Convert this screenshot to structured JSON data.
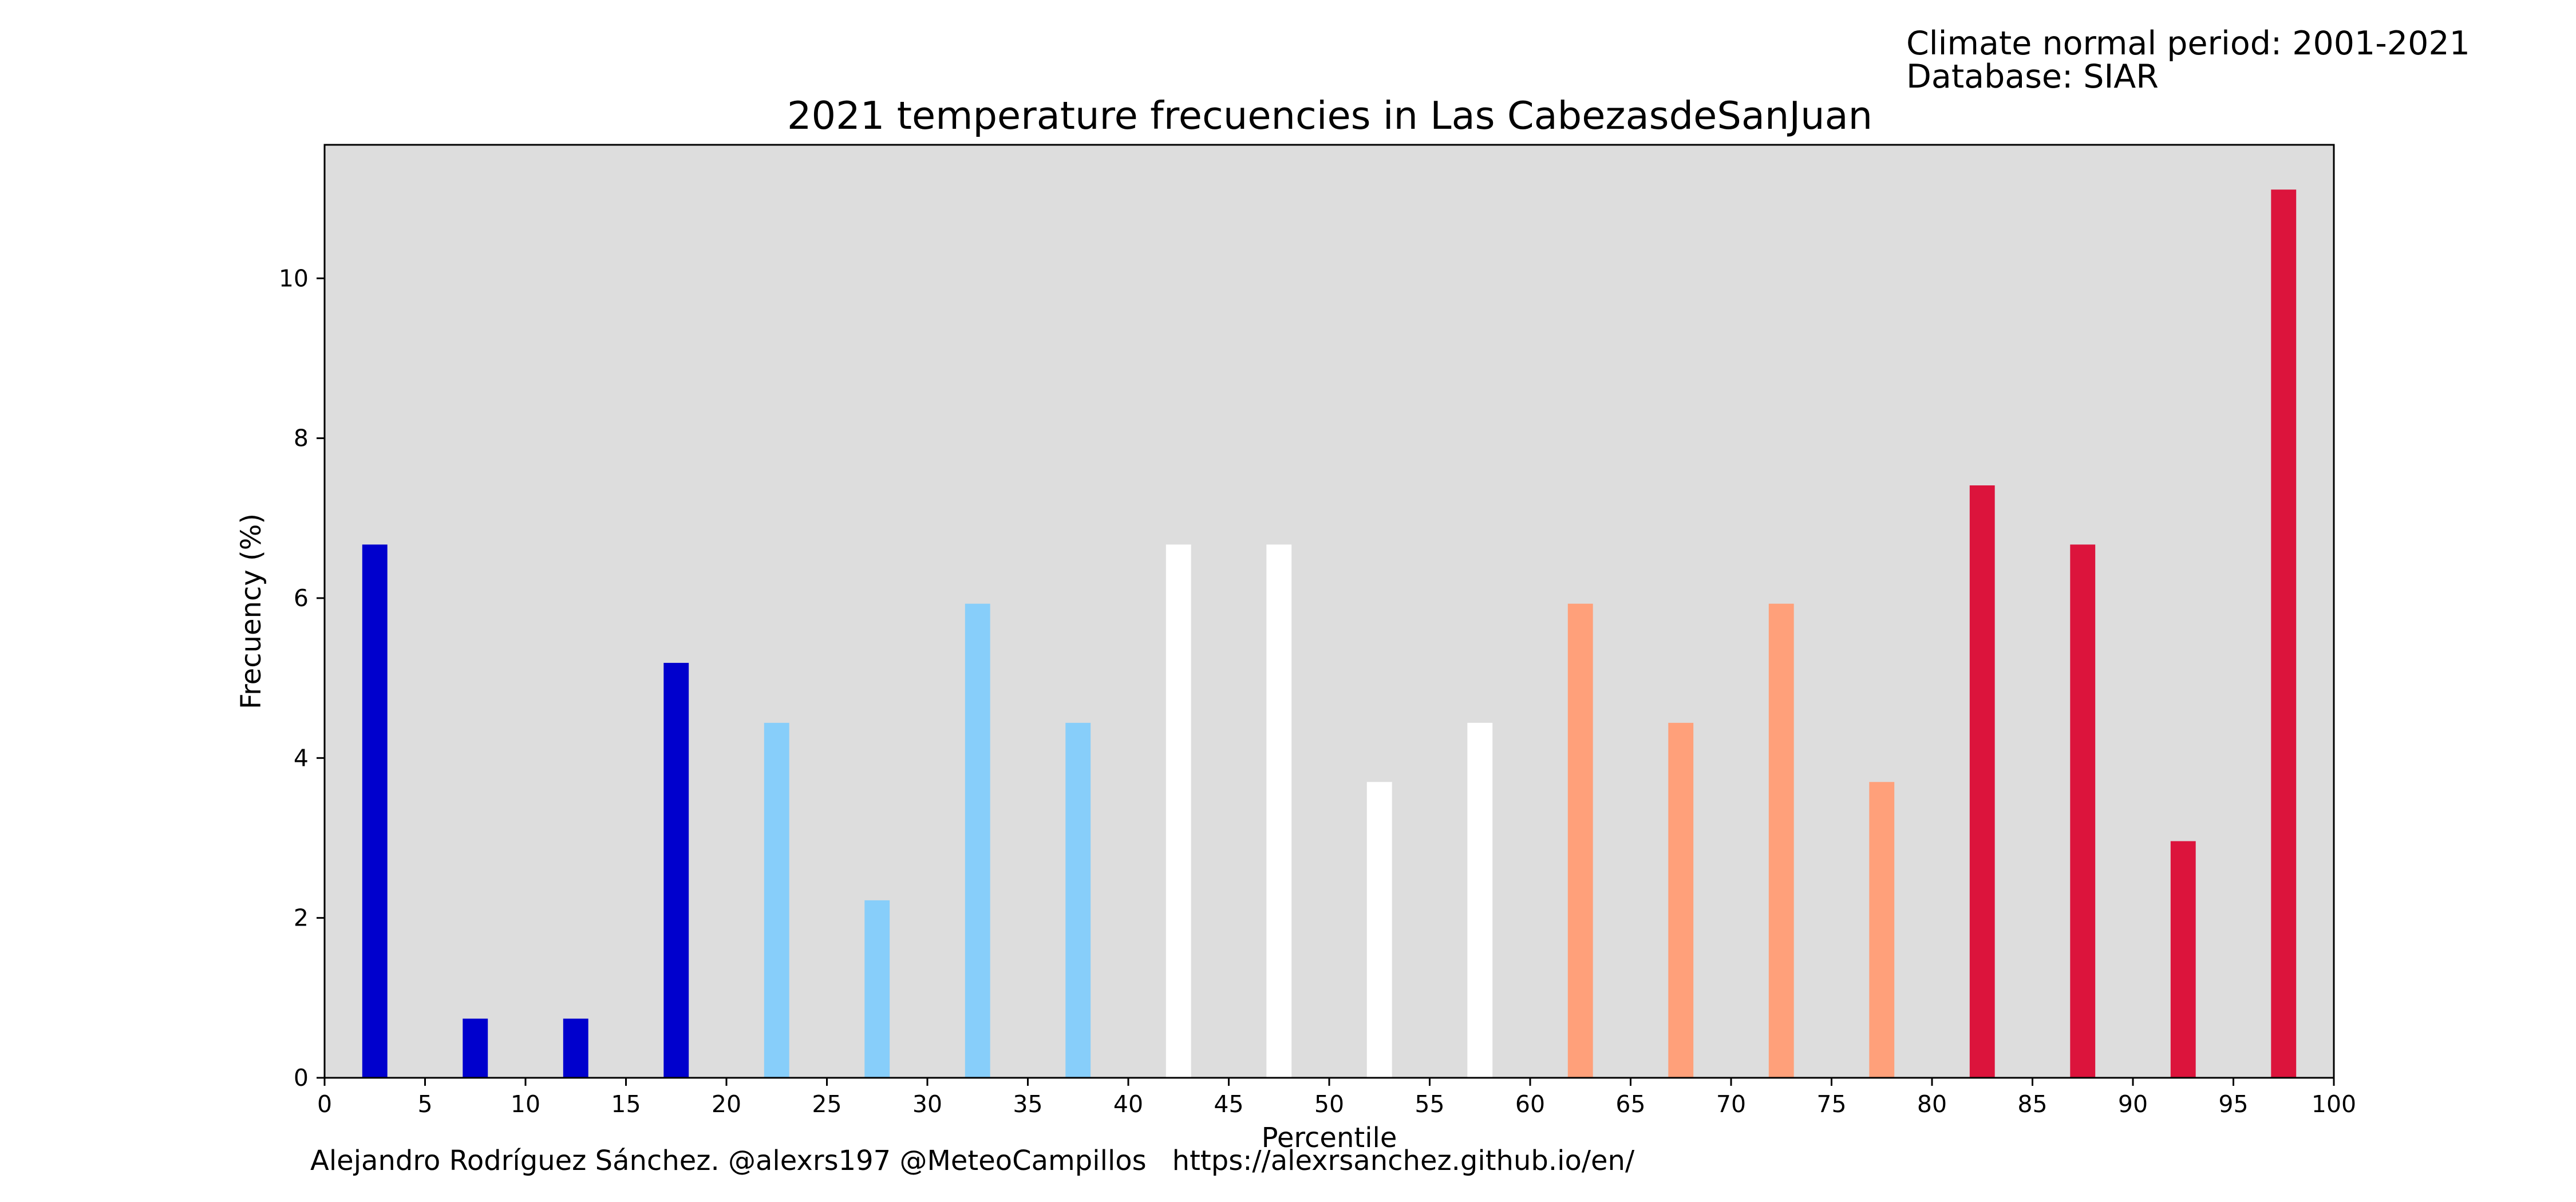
{
  "notes": {
    "period": "Climate normal period: 2001-2021",
    "database": "Database: SIAR"
  },
  "footer": {
    "author": "Alejandro Rodríguez Sánchez. @alexrs197 @MeteoCampillos",
    "url": "https://alexrsanchez.github.io/en/"
  },
  "chart_data": {
    "type": "bar",
    "title": "2021 temperature frecuencies in Las CabezasdeSanJuan",
    "xlabel": "Percentile",
    "ylabel": "Frecuency (%)",
    "xlim": [
      0,
      100
    ],
    "ylim": [
      0,
      11.67
    ],
    "xticks": [
      0,
      5,
      10,
      15,
      20,
      25,
      30,
      35,
      40,
      45,
      50,
      55,
      60,
      65,
      70,
      75,
      80,
      85,
      90,
      95,
      100
    ],
    "yticks": [
      0,
      2,
      4,
      6,
      8,
      10
    ],
    "background_color": "#dddddd",
    "bar_width": 1.25,
    "bars": [
      {
        "x": 2.5,
        "value": 6.67,
        "color": "#0000cd"
      },
      {
        "x": 7.5,
        "value": 0.74,
        "color": "#0000cd"
      },
      {
        "x": 12.5,
        "value": 0.74,
        "color": "#0000cd"
      },
      {
        "x": 17.5,
        "value": 5.19,
        "color": "#0000cd"
      },
      {
        "x": 22.5,
        "value": 4.44,
        "color": "#87cefa"
      },
      {
        "x": 27.5,
        "value": 2.22,
        "color": "#87cefa"
      },
      {
        "x": 32.5,
        "value": 5.93,
        "color": "#87cefa"
      },
      {
        "x": 37.5,
        "value": 4.44,
        "color": "#87cefa"
      },
      {
        "x": 42.5,
        "value": 6.67,
        "color": "#ffffff"
      },
      {
        "x": 47.5,
        "value": 6.67,
        "color": "#ffffff"
      },
      {
        "x": 52.5,
        "value": 3.7,
        "color": "#ffffff"
      },
      {
        "x": 57.5,
        "value": 4.44,
        "color": "#ffffff"
      },
      {
        "x": 62.5,
        "value": 5.93,
        "color": "#ffa07a"
      },
      {
        "x": 67.5,
        "value": 4.44,
        "color": "#ffa07a"
      },
      {
        "x": 72.5,
        "value": 5.93,
        "color": "#ffa07a"
      },
      {
        "x": 77.5,
        "value": 3.7,
        "color": "#ffa07a"
      },
      {
        "x": 82.5,
        "value": 7.41,
        "color": "#dc143c"
      },
      {
        "x": 87.5,
        "value": 6.67,
        "color": "#dc143c"
      },
      {
        "x": 92.5,
        "value": 2.96,
        "color": "#dc143c"
      },
      {
        "x": 97.5,
        "value": 11.11,
        "color": "#dc143c"
      }
    ]
  }
}
